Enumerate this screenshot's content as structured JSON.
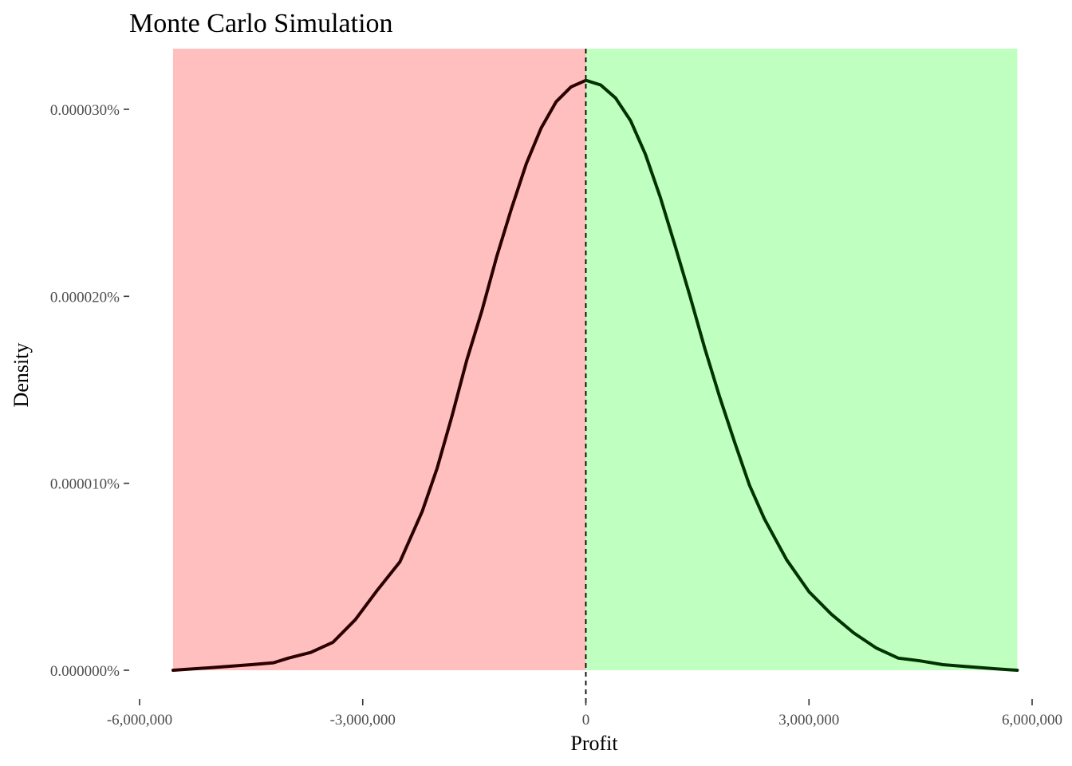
{
  "chart_data": {
    "type": "line",
    "title": "Monte Carlo Simulation",
    "xlabel": "Profit",
    "ylabel": "Density",
    "x_ticks": [
      -6000000,
      -3000000,
      0,
      3000000,
      6000000
    ],
    "x_tick_labels": [
      "-6,000,000",
      "-3,000,000",
      "0",
      "3,000,000",
      "6,000,000"
    ],
    "y_ticks": [
      0,
      1e-07,
      2e-07,
      3e-07
    ],
    "y_tick_labels": [
      "0.000000%",
      "0.000010%",
      "0.000020%",
      "0.000030%"
    ],
    "xlim": [
      -6000000,
      6000000
    ],
    "ylim": [
      0,
      3.15e-07
    ],
    "regions": [
      {
        "name": "loss",
        "from": -5550000,
        "to": 0,
        "color": "#ffbfbf"
      },
      {
        "name": "profit",
        "from": 0,
        "to": 5800000,
        "color": "#bfffbf"
      }
    ],
    "reference_line": {
      "x": 0,
      "style": "dashed",
      "color": "#000000"
    },
    "grid": false,
    "series": [
      {
        "color_negative": "#2a0000",
        "color_positive": "#003300",
        "x": [
          -5550000,
          -5000000,
          -4500000,
          -4200000,
          -4000000,
          -3700000,
          -3400000,
          -3100000,
          -2800000,
          -2500000,
          -2200000,
          -2000000,
          -1800000,
          -1600000,
          -1400000,
          -1200000,
          -1000000,
          -800000,
          -600000,
          -400000,
          -200000,
          0,
          200000,
          400000,
          600000,
          800000,
          1000000,
          1200000,
          1400000,
          1600000,
          1800000,
          2000000,
          2200000,
          2400000,
          2700000,
          3000000,
          3300000,
          3600000,
          3900000,
          4200000,
          4500000,
          4800000,
          5100000,
          5500000,
          5800000
        ],
        "y": [
          0,
          1.5e-09,
          3e-09,
          4e-09,
          6.5e-09,
          9.5e-09,
          1.5e-08,
          2.7e-08,
          4.3e-08,
          5.8e-08,
          8.5e-08,
          1.08e-07,
          1.36e-07,
          1.66e-07,
          1.92e-07,
          2.21e-07,
          2.47e-07,
          2.71e-07,
          2.9e-07,
          3.04e-07,
          3.12e-07,
          3.155e-07,
          3.13e-07,
          3.06e-07,
          2.94e-07,
          2.76e-07,
          2.53e-07,
          2.27e-07,
          2e-07,
          1.72e-07,
          1.46e-07,
          1.22e-07,
          9.9e-08,
          8.1e-08,
          5.9e-08,
          4.2e-08,
          3e-08,
          2e-08,
          1.2e-08,
          6.5e-09,
          5e-09,
          3e-09,
          2e-09,
          8e-10,
          0
        ]
      }
    ]
  }
}
